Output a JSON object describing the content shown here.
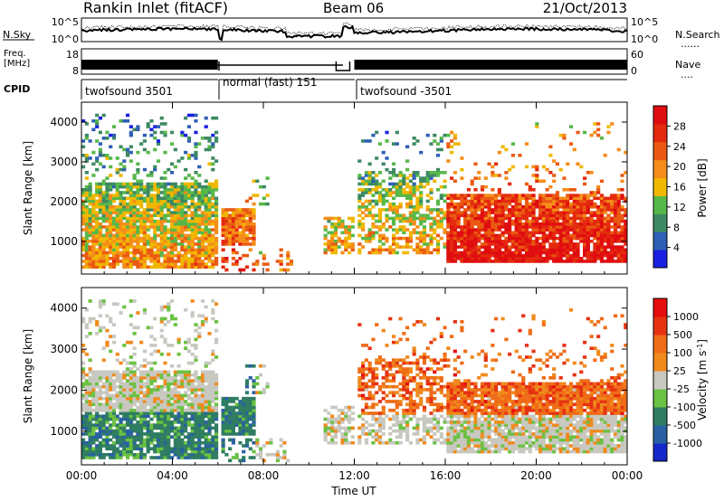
{
  "header": {
    "station": "Rankin Inlet (fitACF)",
    "beam": "Beam 06",
    "date": "21/Oct/2013"
  },
  "noise_panel": {
    "left_label": "N.Sky",
    "right_label": "N.Search",
    "right_marker": "......",
    "ticks_left": [
      "10^5",
      "10^0"
    ],
    "ticks_right": [
      "10^5",
      "10^0"
    ]
  },
  "freq_panel": {
    "left_label_line1": "Freq.",
    "left_label_line2": "[MHz]",
    "ticks_left": [
      "18",
      "8"
    ],
    "right_label": "Nave",
    "right_marker": "....",
    "ticks_right": [
      "60",
      "0"
    ]
  },
  "cpid": {
    "label": "CPID",
    "segments": [
      {
        "start_h": 0,
        "end_h": 6,
        "text": "twofsound 3501"
      },
      {
        "start_h": 6,
        "end_h": 12,
        "text": "normal (fast) 151"
      },
      {
        "start_h": 12,
        "end_h": 24,
        "text": "twofsound -3501"
      }
    ]
  },
  "colors": {
    "power": [
      "#1a20e0",
      "#2f5fb6",
      "#3d8a63",
      "#57b84a",
      "#f0b800",
      "#f58d1a",
      "#ea5a12",
      "#e42a0f",
      "#e00d10"
    ],
    "velocity": [
      "#1427c8",
      "#2a60a2",
      "#2f7d62",
      "#6bc142",
      "#c8c8c0",
      "#f08a1c",
      "#ef6c18",
      "#e63212",
      "#e60d0d"
    ]
  },
  "chart_data": [
    {
      "type": "heatmap",
      "name": "power",
      "ylabel": "Slant Range [km]",
      "xlabel": "Time UT",
      "x_ticks": [
        "00:00",
        "04:00",
        "08:00",
        "12:00",
        "16:00",
        "20:00",
        "00:00"
      ],
      "x_range_hours": [
        0,
        24
      ],
      "y_ticks": [
        1000,
        2000,
        3000,
        4000
      ],
      "ylim": [
        180,
        4500
      ],
      "colorbar_label": "Power [dB]",
      "colorbar_ticks": [
        "28",
        "24",
        "20",
        "16",
        "12",
        "8",
        "4"
      ]
    },
    {
      "type": "heatmap",
      "name": "velocity",
      "ylabel": "Slant Range [km]",
      "xlabel": "Time UT",
      "x_ticks": [
        "00:00",
        "04:00",
        "08:00",
        "12:00",
        "16:00",
        "20:00",
        "00:00"
      ],
      "x_range_hours": [
        0,
        24
      ],
      "y_ticks": [
        1000,
        2000,
        3000,
        4000
      ],
      "ylim": [
        180,
        4500
      ],
      "colorbar_label": "Velocity [m s^-1]",
      "colorbar_ticks": [
        "1000",
        "500",
        "100",
        "25",
        "-25",
        "-100",
        "-500",
        "-1000"
      ]
    }
  ]
}
